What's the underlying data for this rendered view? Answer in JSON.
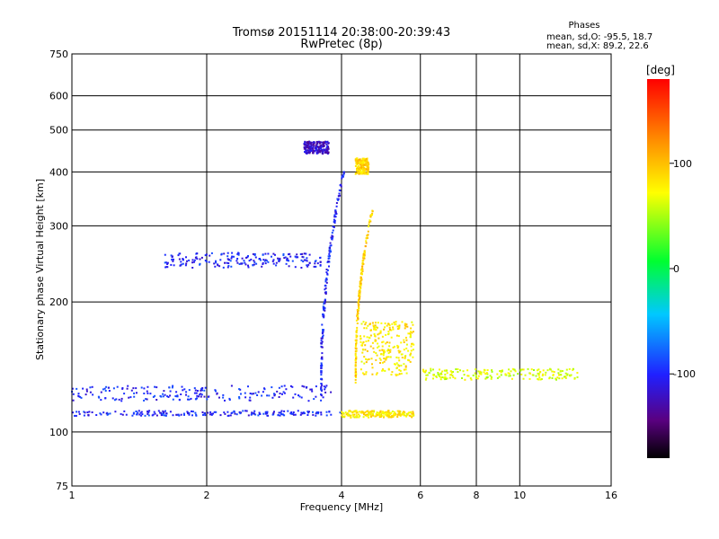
{
  "chart_data": {
    "type": "scatter",
    "title": "Tromsø 20151114 20:38:00-20:39:43",
    "subtitle": "RwPretec (8p)",
    "xlabel": "Frequency [MHz]",
    "ylabel": "Stationary phase Virtual Height [km]",
    "xscale": "log",
    "yscale": "log",
    "xlim": [
      1,
      16
    ],
    "ylim": [
      75,
      750
    ],
    "x_ticks": [
      1,
      2,
      4,
      6,
      8,
      10,
      16
    ],
    "x_tick_labels": [
      "1",
      "2",
      "4",
      "6",
      "8",
      "10",
      "16"
    ],
    "y_ticks": [
      75,
      100,
      200,
      300,
      400,
      500,
      600,
      750
    ],
    "y_tick_labels": [
      "75",
      "100",
      "200",
      "300",
      "400",
      "500",
      "600",
      "750"
    ],
    "grid": true,
    "stats": {
      "heading": "Phases",
      "line_o": "mean, sd,O: -95.5, 18.7",
      "line_x": "mean, sd,X:  89.2, 22.6"
    },
    "colorbar": {
      "label": "[deg]",
      "range": [
        -180,
        180
      ],
      "ticks": [
        100,
        0,
        -100
      ],
      "tick_labels": [
        "100",
        "0",
        "-100"
      ]
    },
    "traces": [
      {
        "name": "",
        "phase": -100,
        "x_range": [
          1.0,
          4.0
        ],
        "y_range": [
          109,
          112
        ],
        "shape": "flat"
      },
      {
        "name": "",
        "phase": -100,
        "x_range": [
          1.0,
          3.8
        ],
        "y_range": [
          118,
          128
        ],
        "shape": "flat"
      },
      {
        "name": "",
        "phase": -100,
        "x_range": [
          3.6,
          4.05
        ],
        "y_range": [
          120,
          400
        ],
        "shape": "cusp"
      },
      {
        "name": "",
        "phase": -100,
        "x_range": [
          1.6,
          3.6
        ],
        "y_range": [
          240,
          260
        ],
        "shape": "flat"
      },
      {
        "name": "",
        "phase": -120,
        "x_range": [
          3.3,
          3.75
        ],
        "y_range": [
          440,
          470
        ],
        "shape": "flat"
      },
      {
        "name": "",
        "phase": 80,
        "x_range": [
          4.0,
          5.8
        ],
        "y_range": [
          108,
          112
        ],
        "shape": "flat"
      },
      {
        "name": "",
        "phase": 90,
        "x_range": [
          4.3,
          4.7
        ],
        "y_range": [
          130,
          330
        ],
        "shape": "cusp"
      },
      {
        "name": "",
        "phase": 80,
        "x_range": [
          4.4,
          5.8
        ],
        "y_range": [
          135,
          180
        ],
        "shape": "band"
      },
      {
        "name": "",
        "phase": 60,
        "x_range": [
          6.0,
          13.5
        ],
        "y_range": [
          132,
          140
        ],
        "shape": "flat"
      },
      {
        "name": "",
        "phase": 90,
        "x_range": [
          4.3,
          4.6
        ],
        "y_range": [
          395,
          430
        ],
        "shape": "flat"
      }
    ]
  }
}
